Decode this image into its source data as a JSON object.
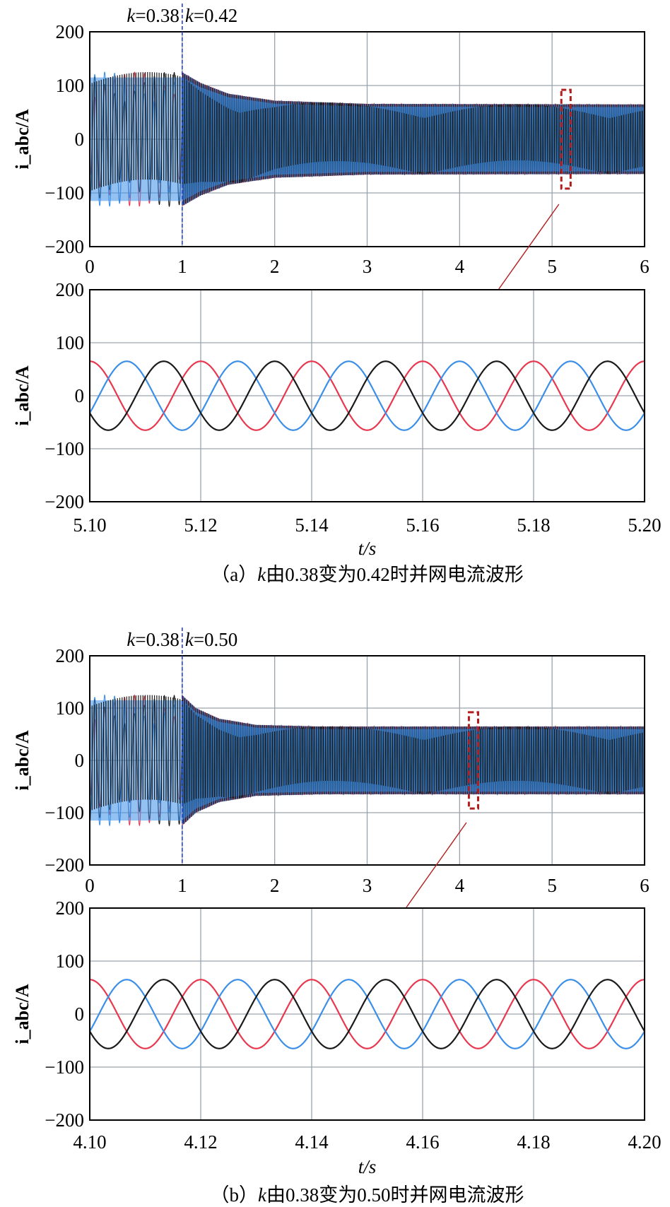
{
  "colors": {
    "phase_a": "#e8384f",
    "phase_b": "#3b8fe8",
    "phase_c": "#1a1a1a",
    "marker": "#2a3fd6",
    "zoom_box": "#b21e1e"
  },
  "chart_data": [
    {
      "type": "line",
      "panel": "a-overview",
      "ylabel": "i_abc/A",
      "ylim": [
        -200,
        200
      ],
      "xlim": [
        0,
        6
      ],
      "x_ticks": [
        "0",
        "1",
        "2",
        "3",
        "4",
        "5",
        "6"
      ],
      "y_ticks": [
        "200",
        "100",
        "0",
        "−100",
        "−200"
      ],
      "grid": true,
      "step_time": 1,
      "annotation_before": {
        "var": "k",
        "text": "=0.38"
      },
      "annotation_after": {
        "var": "k",
        "text": "=0.42"
      },
      "series": [
        {
          "color": "phase_a",
          "freq": 50,
          "phase": -90,
          "amplitude_profile": [
            [
              0,
              125
            ],
            [
              1,
              125
            ],
            [
              1.2,
              105
            ],
            [
              1.5,
              85
            ],
            [
              2,
              72
            ],
            [
              3,
              66
            ],
            [
              6,
              65
            ]
          ]
        },
        {
          "color": "phase_b",
          "freq": 50,
          "phase": 150,
          "amplitude_profile": [
            [
              0,
              125
            ],
            [
              1,
              125
            ],
            [
              1.2,
              105
            ],
            [
              1.5,
              85
            ],
            [
              2,
              72
            ],
            [
              3,
              66
            ],
            [
              6,
              65
            ]
          ]
        },
        {
          "color": "phase_c",
          "freq": 50,
          "phase": 30,
          "amplitude_profile": [
            [
              0,
              125
            ],
            [
              1,
              125
            ],
            [
              1.2,
              105
            ],
            [
              1.5,
              85
            ],
            [
              2,
              72
            ],
            [
              3,
              66
            ],
            [
              6,
              65
            ]
          ]
        }
      ],
      "zoom_window": [
        5.1,
        5.2
      ]
    },
    {
      "type": "line",
      "panel": "a-zoom",
      "ylabel": "i_abc/A",
      "xlabel": "t/s",
      "ylim": [
        -200,
        200
      ],
      "xlim": [
        5.1,
        5.2
      ],
      "x_ticks": [
        "5.10",
        "5.12",
        "5.14",
        "5.16",
        "5.18",
        "5.20"
      ],
      "y_ticks": [
        "200",
        "100",
        "0",
        "−100",
        "−200"
      ],
      "grid": true,
      "series": [
        {
          "color": "phase_a",
          "freq": 50,
          "phase": 90,
          "amplitude": 65
        },
        {
          "color": "phase_b",
          "freq": 50,
          "phase": -30,
          "amplitude": 65
        },
        {
          "color": "phase_c",
          "freq": 50,
          "phase": -150,
          "amplitude": 65
        }
      ],
      "caption": {
        "prefix": "（a）",
        "var": "k",
        "text": "由0.38变为0.42时并网电流波形"
      }
    },
    {
      "type": "line",
      "panel": "b-overview",
      "ylabel": "i_abc/A",
      "ylim": [
        -200,
        200
      ],
      "xlim": [
        0,
        6
      ],
      "x_ticks": [
        "0",
        "1",
        "2",
        "3",
        "4",
        "5",
        "6"
      ],
      "y_ticks": [
        "200",
        "100",
        "0",
        "−100",
        "−200"
      ],
      "grid": true,
      "step_time": 1,
      "annotation_before": {
        "var": "k",
        "text": "=0.38"
      },
      "annotation_after": {
        "var": "k",
        "text": "=0.50"
      },
      "series": [
        {
          "color": "phase_a",
          "freq": 50,
          "phase": -90,
          "amplitude_profile": [
            [
              0,
              125
            ],
            [
              1,
              125
            ],
            [
              1.15,
              100
            ],
            [
              1.4,
              80
            ],
            [
              1.8,
              68
            ],
            [
              2.5,
              65
            ],
            [
              6,
              65
            ]
          ]
        },
        {
          "color": "phase_b",
          "freq": 50,
          "phase": 150,
          "amplitude_profile": [
            [
              0,
              125
            ],
            [
              1,
              125
            ],
            [
              1.15,
              100
            ],
            [
              1.4,
              80
            ],
            [
              1.8,
              68
            ],
            [
              2.5,
              65
            ],
            [
              6,
              65
            ]
          ]
        },
        {
          "color": "phase_c",
          "freq": 50,
          "phase": 30,
          "amplitude_profile": [
            [
              0,
              125
            ],
            [
              1,
              125
            ],
            [
              1.15,
              100
            ],
            [
              1.4,
              80
            ],
            [
              1.8,
              68
            ],
            [
              2.5,
              65
            ],
            [
              6,
              65
            ]
          ]
        }
      ],
      "zoom_window": [
        4.1,
        4.2
      ]
    },
    {
      "type": "line",
      "panel": "b-zoom",
      "ylabel": "i_abc/A",
      "xlabel": "t/s",
      "ylim": [
        -200,
        200
      ],
      "xlim": [
        4.1,
        4.2
      ],
      "x_ticks": [
        "4.10",
        "4.12",
        "4.14",
        "4.16",
        "4.18",
        "4.20"
      ],
      "y_ticks": [
        "200",
        "100",
        "0",
        "−100",
        "−200"
      ],
      "grid": true,
      "series": [
        {
          "color": "phase_a",
          "freq": 50,
          "phase": 90,
          "amplitude": 65
        },
        {
          "color": "phase_b",
          "freq": 50,
          "phase": -30,
          "amplitude": 65
        },
        {
          "color": "phase_c",
          "freq": 50,
          "phase": -150,
          "amplitude": 65
        }
      ],
      "caption": {
        "prefix": "（b）",
        "var": "k",
        "text": "由0.38变为0.50时并网电流波形"
      }
    }
  ]
}
